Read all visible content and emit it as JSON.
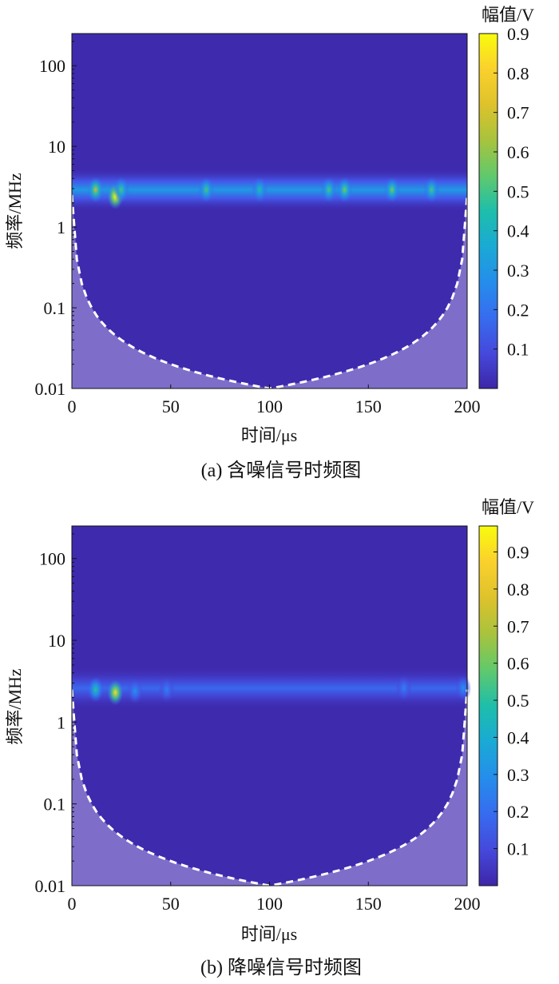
{
  "chart_data": [
    {
      "type": "heatmap",
      "title": "",
      "caption": "(a)  含噪信号时频图",
      "xlabel": "时间/μs",
      "ylabel": "频率/MHz",
      "xlim": [
        0,
        200
      ],
      "ylim": [
        0.01,
        250
      ],
      "yscale": "log",
      "xticks": [
        0,
        50,
        100,
        150,
        200
      ],
      "xtick_labels": [
        "0",
        "50",
        "100",
        "150",
        "200"
      ],
      "yticks": [
        0.01,
        0.1,
        1,
        10,
        100
      ],
      "ytick_labels": [
        "0.01",
        "0.1",
        "1",
        "10",
        "100"
      ],
      "colorbar": {
        "label": "幅值/V",
        "range": [
          0,
          0.9
        ],
        "ticks": [
          0.1,
          0.2,
          0.3,
          0.4,
          0.5,
          0.6,
          0.7,
          0.8,
          0.9
        ],
        "tick_labels": [
          "0.1",
          "0.2",
          "0.3",
          "0.4",
          "0.5",
          "0.6",
          "0.7",
          "0.8",
          "0.9"
        ]
      },
      "band": {
        "center_freq_mhz": 2.9,
        "baseline_amplitude": 0.3
      },
      "peaks": [
        {
          "t": 12,
          "f": 2.9,
          "amplitude": 0.65
        },
        {
          "t": 22,
          "f": 2.4,
          "amplitude": 0.9
        },
        {
          "t": 25,
          "f": 2.9,
          "amplitude": 0.5
        },
        {
          "t": 68,
          "f": 2.9,
          "amplitude": 0.5
        },
        {
          "t": 95,
          "f": 2.9,
          "amplitude": 0.45
        },
        {
          "t": 130,
          "f": 2.9,
          "amplitude": 0.5
        },
        {
          "t": 138,
          "f": 2.9,
          "amplitude": 0.55
        },
        {
          "t": 162,
          "f": 2.9,
          "amplitude": 0.55
        },
        {
          "t": 182,
          "f": 2.9,
          "amplitude": 0.5
        }
      ],
      "cone_of_influence": {
        "min_freq_mhz": 0.01,
        "at_time_us": 100
      }
    },
    {
      "type": "heatmap",
      "title": "",
      "caption": "(b)  降噪信号时频图",
      "xlabel": "时间/μs",
      "ylabel": "频率/MHz",
      "xlim": [
        0,
        200
      ],
      "ylim": [
        0.01,
        250
      ],
      "yscale": "log",
      "xticks": [
        0,
        50,
        100,
        150,
        200
      ],
      "xtick_labels": [
        "0",
        "50",
        "100",
        "150",
        "200"
      ],
      "yticks": [
        0.01,
        0.1,
        1,
        10,
        100
      ],
      "ytick_labels": [
        "0.01",
        "0.1",
        "1",
        "10",
        "100"
      ],
      "colorbar": {
        "label": "幅值/V",
        "range": [
          0,
          0.97
        ],
        "ticks": [
          0.1,
          0.2,
          0.3,
          0.4,
          0.5,
          0.6,
          0.7,
          0.8,
          0.9
        ],
        "tick_labels": [
          "0.1",
          "0.2",
          "0.3",
          "0.4",
          "0.5",
          "0.6",
          "0.7",
          "0.8",
          "0.9"
        ]
      },
      "band": {
        "center_freq_mhz": 2.6,
        "baseline_amplitude": 0.18
      },
      "peaks": [
        {
          "t": 12,
          "f": 2.5,
          "amplitude": 0.5
        },
        {
          "t": 22,
          "f": 2.3,
          "amplitude": 0.9
        },
        {
          "t": 32,
          "f": 2.4,
          "amplitude": 0.3
        },
        {
          "t": 48,
          "f": 2.5,
          "amplitude": 0.25
        },
        {
          "t": 168,
          "f": 2.6,
          "amplitude": 0.25
        },
        {
          "t": 198,
          "f": 2.6,
          "amplitude": 0.3
        }
      ],
      "cone_of_influence": {
        "min_freq_mhz": 0.01,
        "at_time_us": 100
      }
    }
  ]
}
